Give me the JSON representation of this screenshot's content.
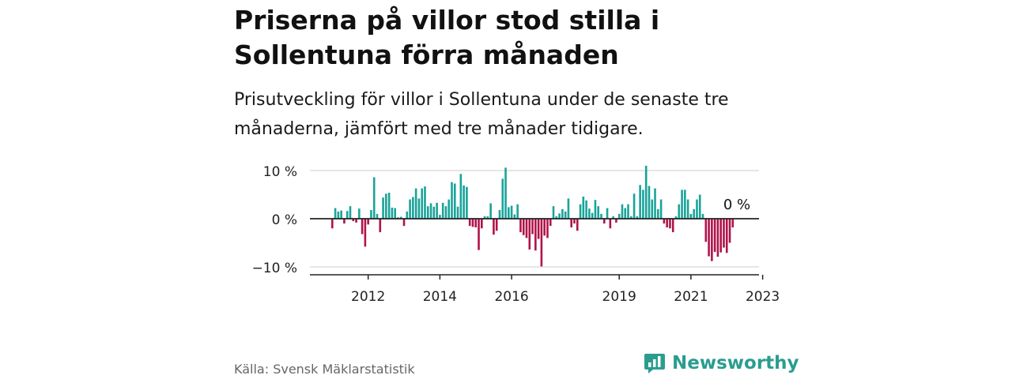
{
  "header": {
    "title": "Priserna på villor stod stilla i Sollentuna förra månaden",
    "subtitle": "Prisutveckling för villor i Sollentuna under de senaste tre månaderna, jämfört med tre månader tidigare."
  },
  "colors": {
    "positive": "#1aa39a",
    "negative": "#b0134a",
    "grid": "#dddddd",
    "axis": "#222222",
    "brand": "#2a9d8f"
  },
  "chart_data": {
    "type": "bar",
    "title": "Priserna på villor stod stilla i Sollentuna förra månaden",
    "subtitle": "Prisutveckling för villor i Sollentuna under de senaste tre månaderna, jämfört med tre månader tidigare.",
    "xlabel": "",
    "ylabel": "",
    "ylim": [
      -11,
      11
    ],
    "y_ticks": [
      10,
      0,
      -10
    ],
    "y_tick_labels": [
      "10 %",
      "0 %",
      "−10 %"
    ],
    "x_tick_labels": [
      "2012",
      "2014",
      "2016",
      "2019",
      "2021",
      "2023"
    ],
    "x_tick_months": [
      12,
      36,
      60,
      96,
      120,
      144
    ],
    "start": "2011-12",
    "annotation": "0 %",
    "values": [
      -2.0,
      2.2,
      1.5,
      1.7,
      -1.0,
      1.6,
      2.6,
      -0.5,
      -0.8,
      2.1,
      -3.2,
      -5.8,
      -1.2,
      1.8,
      8.6,
      1.0,
      -2.8,
      4.4,
      5.2,
      5.4,
      2.3,
      2.2,
      0.3,
      0.4,
      -1.5,
      1.5,
      4.0,
      4.5,
      6.3,
      4.2,
      6.3,
      6.7,
      2.6,
      3.2,
      2.5,
      3.3,
      0.8,
      3.3,
      2.6,
      4.0,
      7.6,
      7.3,
      2.5,
      9.3,
      6.9,
      6.6,
      -1.5,
      -1.7,
      -1.8,
      -6.5,
      -2.0,
      0.5,
      0.5,
      3.2,
      -3.3,
      -2.5,
      1.8,
      8.3,
      10.6,
      2.4,
      2.7,
      0.9,
      3.0,
      -2.8,
      -3.4,
      -4.0,
      -6.4,
      -3.2,
      -6.6,
      -4.2,
      -9.9,
      -3.5,
      -4.0,
      -1.5,
      2.6,
      0.5,
      1.1,
      2.0,
      1.5,
      4.2,
      -1.8,
      -1.0,
      -2.5,
      3.0,
      4.6,
      3.8,
      2.1,
      1.2,
      3.9,
      2.6,
      1.0,
      -1.0,
      2.2,
      -2.0,
      0.5,
      -0.8,
      1.0,
      3.0,
      2.2,
      3.0,
      0.5,
      5.2,
      0.5,
      7.0,
      6.0,
      11.0,
      6.8,
      4.0,
      6.3,
      2.0,
      4.0,
      -1.0,
      -1.8,
      -2.0,
      -2.8,
      0.5,
      3.0,
      6.0,
      6.0,
      4.0,
      1.0,
      2.0,
      4.0,
      5.0,
      1.0,
      -4.8,
      -7.8,
      -8.8,
      -6.9,
      -7.9,
      -7.0,
      -6.0,
      -7.1,
      -5.0,
      -1.8,
      0.0
    ]
  },
  "footer": {
    "source": "Källa: Svensk Mäklarstatistik",
    "brand": "Newsworthy"
  }
}
